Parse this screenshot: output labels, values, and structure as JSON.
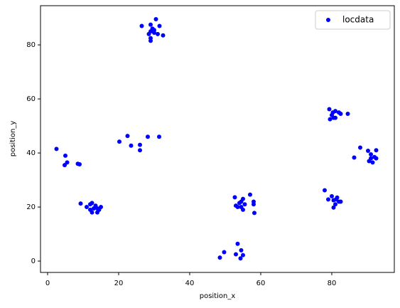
{
  "chart_data": {
    "type": "scatter",
    "x_label": "position_x",
    "y_label": "position_y",
    "x": [
      26.5,
      29,
      29.5,
      30.5,
      31.5,
      29,
      30,
      28.5,
      29,
      29,
      31,
      32.5,
      30,
      2.5,
      5,
      4.8,
      5.5,
      8.5,
      9,
      20.2,
      22.5,
      23.5,
      26,
      26,
      28.2,
      31.4,
      9.3,
      11,
      12,
      12.5,
      13,
      12.5,
      14,
      14.5,
      15,
      14,
      13.5,
      12,
      48.5,
      49.7,
      53.5,
      53,
      54.5,
      55,
      54.3,
      52.7,
      53,
      54,
      54.5,
      55,
      55,
      55.5,
      53.5,
      57,
      58,
      58,
      58.2,
      54.5,
      78,
      79,
      80,
      80.5,
      81,
      81.5,
      82,
      82.5,
      80.5,
      81.2,
      79.3,
      79.5,
      80,
      80.5,
      81,
      81,
      82,
      82.5,
      84.5,
      80.3,
      86.3,
      88,
      90.2,
      90.5,
      91,
      91.5,
      92,
      92.5,
      91,
      92.5
    ],
    "series": [
      {
        "name": "locdata",
        "color": "#0000ff",
        "values": [
          87,
          87.5,
          86,
          89.5,
          87,
          85,
          84.5,
          84,
          82.5,
          81.5,
          84,
          83.5,
          85.5,
          41.5,
          39,
          35.5,
          36.5,
          36,
          35.8,
          44.2,
          46.3,
          42.7,
          43,
          41,
          46,
          46,
          21.3,
          20,
          21,
          21.5,
          19.5,
          18,
          18,
          19,
          20,
          19.5,
          20.5,
          19,
          1.3,
          3.3,
          6.4,
          2.5,
          4,
          2.2,
          1,
          23.6,
          20.5,
          21.5,
          20,
          23,
          19,
          21,
          20,
          24.6,
          22,
          21,
          17.8,
          22,
          26.2,
          22.8,
          24,
          19.8,
          21,
          23.5,
          22,
          22,
          22.5,
          22.8,
          56.2,
          52.5,
          54,
          53,
          55.5,
          53,
          55,
          54.5,
          54.5,
          55,
          38.3,
          42,
          40.8,
          37,
          38,
          36.5,
          38.5,
          41,
          39.5,
          38
        ]
      }
    ],
    "xlim": [
      -2,
      97.6
    ],
    "ylim": [
      -4.2,
      94.5
    ],
    "xticks": [
      0,
      20,
      40,
      60,
      80
    ],
    "yticks": [
      0,
      20,
      40,
      60,
      80
    ],
    "grid": false,
    "legend": "upper right"
  }
}
